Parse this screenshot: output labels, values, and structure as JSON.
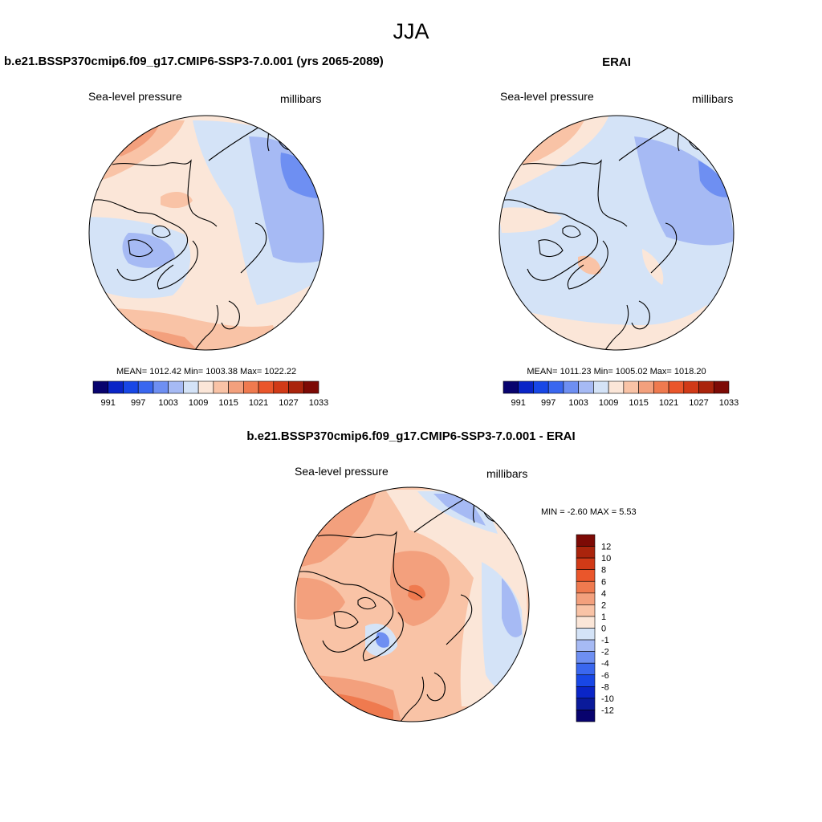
{
  "figure_title": "JJA",
  "panels": {
    "model": {
      "title": "b.e21.BSSP370cmip6.f09_g17.CMIP6-SSP3-7.0.001 (yrs 2065-2089)",
      "variable": "Sea-level pressure",
      "units": "millibars",
      "stats": "MEAN= 1012.42  Min= 1003.38  Max= 1022.22"
    },
    "obs": {
      "title": "ERAI",
      "variable": "Sea-level pressure",
      "units": "millibars",
      "stats": "MEAN= 1011.23  Min= 1005.02  Max= 1018.20"
    },
    "diff": {
      "title": "b.e21.BSSP370cmip6.f09_g17.CMIP6-SSP3-7.0.001 - ERAI",
      "variable": "Sea-level pressure",
      "units": "millibars",
      "stats": "MIN =  -2.60 MAX =   5.53"
    }
  },
  "chart_data": [
    {
      "type": "heatmap",
      "projection": "north polar stereographic",
      "name": "model",
      "title": "b.e21.BSSP370cmip6.f09_g17.CMIP6-SSP3-7.0.001 (yrs 2065-2089)",
      "mean": 1012.42,
      "min": 1003.38,
      "max": 1022.22,
      "colorbar_labels": [
        "991",
        "997",
        "1003",
        "1009",
        "1015",
        "1021",
        "1027",
        "1033"
      ],
      "colorbar_colors": [
        "#08036e",
        "#0a25c7",
        "#1847e6",
        "#3a67ef",
        "#6e8ff2",
        "#a6baf4",
        "#d4e3f7",
        "#fbe6d8",
        "#f9c3a6",
        "#f3a07d",
        "#ef7a4f",
        "#ea562b",
        "#d13a17",
        "#aa240c",
        "#7d0a05"
      ]
    },
    {
      "type": "heatmap",
      "projection": "north polar stereographic",
      "name": "obs",
      "title": "ERAI",
      "mean": 1011.23,
      "min": 1005.02,
      "max": 1018.2,
      "colorbar_labels": [
        "991",
        "997",
        "1003",
        "1009",
        "1015",
        "1021",
        "1027",
        "1033"
      ],
      "colorbar_colors": [
        "#08036e",
        "#0a25c7",
        "#1847e6",
        "#3a67ef",
        "#6e8ff2",
        "#a6baf4",
        "#d4e3f7",
        "#fbe6d8",
        "#f9c3a6",
        "#f3a07d",
        "#ef7a4f",
        "#ea562b",
        "#d13a17",
        "#aa240c",
        "#7d0a05"
      ]
    },
    {
      "type": "heatmap",
      "projection": "north polar stereographic",
      "name": "difference",
      "title": "b.e21.BSSP370cmip6.f09_g17.CMIP6-SSP3-7.0.001 - ERAI",
      "min": -2.6,
      "max": 5.53,
      "colorbar_labels": [
        "12",
        "10",
        "8",
        "6",
        "4",
        "2",
        "1",
        "0",
        "-1",
        "-2",
        "-4",
        "-6",
        "-8",
        "-10",
        "-12"
      ],
      "colorbar_colors": [
        "#7d0a05",
        "#aa240c",
        "#d13a17",
        "#ea562b",
        "#ef7a4f",
        "#f3a07d",
        "#f9c3a6",
        "#fbe6d8",
        "#d4e3f7",
        "#a6baf4",
        "#6e8ff2",
        "#3a67ef",
        "#1847e6",
        "#0a25c7",
        "#0a1a9a",
        "#08036e"
      ]
    }
  ]
}
